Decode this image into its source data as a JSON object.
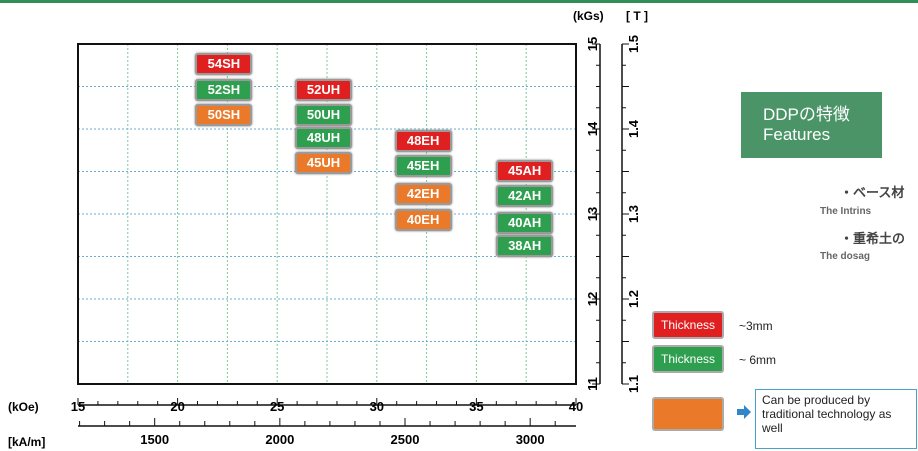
{
  "chart_data": {
    "type": "scatter",
    "x_axis": {
      "unit": "(kOe)",
      "range": [
        15,
        40
      ],
      "ticks": [
        "15",
        "20",
        "25",
        "30",
        "35",
        "40"
      ],
      "secondary_unit": "[kA/m]",
      "secondary_ticks": [
        "1500",
        "2000",
        "2500",
        "3000"
      ]
    },
    "y_axis": {
      "unit_kgs": "(kGs)",
      "unit_t": "[ T ]",
      "range_kgs": [
        11,
        15
      ],
      "ticks_kgs": [
        "15",
        "14",
        "13",
        "12",
        "11"
      ],
      "ticks_t": [
        "1.5",
        "1.4",
        "1.3",
        "1.2",
        "1.1"
      ]
    },
    "grid": true,
    "grades": [
      {
        "label": "54SH",
        "type": "red",
        "hcj": 22.3,
        "br": 14.76
      },
      {
        "label": "52SH",
        "type": "green",
        "hcj": 22.3,
        "br": 14.46
      },
      {
        "label": "50SH",
        "type": "orange",
        "hcj": 22.3,
        "br": 14.17
      },
      {
        "label": "52UH",
        "type": "red",
        "hcj": 27.3,
        "br": 14.46
      },
      {
        "label": "50UH",
        "type": "green",
        "hcj": 27.3,
        "br": 14.17
      },
      {
        "label": "48UH",
        "type": "green",
        "hcj": 27.3,
        "br": 13.89
      },
      {
        "label": "45UH",
        "type": "orange",
        "hcj": 27.3,
        "br": 13.6
      },
      {
        "label": "48EH",
        "type": "red",
        "hcj": 32.3,
        "br": 13.86
      },
      {
        "label": "45EH",
        "type": "green",
        "hcj": 32.3,
        "br": 13.56
      },
      {
        "label": "42EH",
        "type": "orange",
        "hcj": 32.3,
        "br": 13.23
      },
      {
        "label": "40EH",
        "type": "orange",
        "hcj": 32.3,
        "br": 12.93
      },
      {
        "label": "45AH",
        "type": "red",
        "hcj": 37.4,
        "br": 13.51
      },
      {
        "label": "42AH",
        "type": "green",
        "hcj": 37.4,
        "br": 13.21
      },
      {
        "label": "40AH",
        "type": "green",
        "hcj": 37.4,
        "br": 12.9
      },
      {
        "label": "38AH",
        "type": "green",
        "hcj": 37.4,
        "br": 12.62
      }
    ]
  },
  "colors": {
    "red": "#e02020",
    "green": "#2e9e4f",
    "orange": "#ea7a2a",
    "grid": "#7ec99a",
    "topline": "#2f8f57"
  },
  "features": {
    "title_jp": "DDPの特徴",
    "title_en": "Features",
    "line1_jp": "・ベース材",
    "line1_en": "The Intrins",
    "line2_jp": "・重希土の",
    "line2_en": "The dosag"
  },
  "legend": {
    "red_label": "Thickness",
    "red_desc": "~3mm",
    "green_label": "Thickness",
    "green_desc": "~ 6mm",
    "orange_desc": "Can be produced by traditional technology as well"
  }
}
